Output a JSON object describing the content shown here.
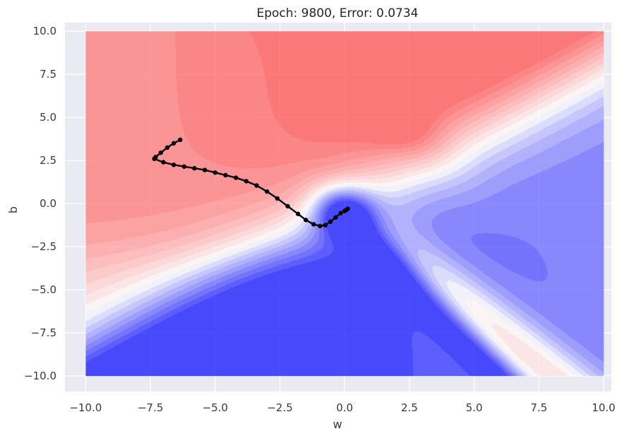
{
  "chart_data": {
    "type": "contour",
    "title": "Epoch:  9800, Error: 0.0734",
    "xlabel": "w",
    "ylabel": "b",
    "xlim": [
      -10.8,
      10.3
    ],
    "ylim": [
      -10.9,
      10.5
    ],
    "x_ticks": [
      "−10.0",
      "−7.5",
      "−5.0",
      "−2.5",
      "0.0",
      "2.5",
      "5.0",
      "7.5",
      "10.0"
    ],
    "y_ticks": [
      "10.0",
      "7.5",
      "5.0",
      "2.5",
      "0.0",
      "−2.5",
      "−5.0",
      "−7.5",
      "−10.0"
    ],
    "x_tick_values": [
      -10,
      -7.5,
      -5,
      -2.5,
      0,
      2.5,
      5,
      7.5,
      10
    ],
    "y_tick_values": [
      10,
      7.5,
      5,
      2.5,
      0,
      -2.5,
      -5,
      -7.5,
      -10
    ],
    "grid": true,
    "colormap": "bwr",
    "contour_extent": {
      "w": [
        -10,
        10
      ],
      "b": [
        -10,
        10
      ]
    },
    "colors": {
      "background": "#eaeaf2",
      "grid": "#ffffff",
      "path": "#000000",
      "low": "#0000ff",
      "high": "#ff0000"
    },
    "trajectory": {
      "name": "",
      "points": [
        [
          -6.35,
          3.7
        ],
        [
          -6.6,
          3.5
        ],
        [
          -6.85,
          3.25
        ],
        [
          -7.1,
          2.95
        ],
        [
          -7.3,
          2.7
        ],
        [
          -7.35,
          2.6
        ],
        [
          -7.0,
          2.4
        ],
        [
          -6.6,
          2.25
        ],
        [
          -6.2,
          2.15
        ],
        [
          -5.8,
          2.05
        ],
        [
          -5.4,
          1.95
        ],
        [
          -5.0,
          1.8
        ],
        [
          -4.6,
          1.65
        ],
        [
          -4.2,
          1.5
        ],
        [
          -3.8,
          1.3
        ],
        [
          -3.4,
          1.05
        ],
        [
          -3.0,
          0.7
        ],
        [
          -2.6,
          0.3
        ],
        [
          -2.2,
          -0.15
        ],
        [
          -1.8,
          -0.6
        ],
        [
          -1.5,
          -0.95
        ],
        [
          -1.2,
          -1.2
        ],
        [
          -0.95,
          -1.3
        ],
        [
          -0.75,
          -1.25
        ],
        [
          -0.55,
          -1.05
        ],
        [
          -0.35,
          -0.8
        ],
        [
          -0.15,
          -0.55
        ],
        [
          0.0,
          -0.42
        ],
        [
          0.08,
          -0.35
        ],
        [
          0.12,
          -0.3
        ]
      ]
    }
  }
}
